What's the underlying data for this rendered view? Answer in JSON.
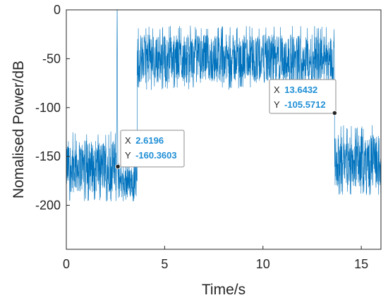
{
  "chart_data": {
    "type": "line",
    "xlabel": "Time/s",
    "ylabel": "Nomalised Power/dB",
    "xlim": [
      0,
      16
    ],
    "ylim": [
      -245,
      0
    ],
    "xticks": [
      0,
      5,
      10,
      15
    ],
    "yticks": [
      0,
      -50,
      -100,
      -150,
      -200
    ],
    "grid": false,
    "series_color": "#0072bd",
    "series": [
      {
        "segments": [
          {
            "x_start": 0.0,
            "x_end": 2.55,
            "level_low": -196,
            "level_high": -124,
            "mean": -160
          },
          {
            "x_start": 2.55,
            "x_end": 2.62,
            "spike_top": 0
          },
          {
            "x_start": 2.62,
            "x_end": 3.6,
            "level_low": -198,
            "level_high": -150,
            "mean": -175
          },
          {
            "x_start": 3.6,
            "x_end": 13.64,
            "level_low": -82,
            "level_high": -16,
            "mean": -50
          },
          {
            "x_start": 13.64,
            "x_end": 16.0,
            "level_low": -190,
            "level_high": -118,
            "mean": -155
          }
        ]
      }
    ],
    "datatips": [
      {
        "x": 2.6196,
        "y": -160.3603,
        "x_text": "2.6196",
        "y_text": "-160.3603"
      },
      {
        "x": 13.6432,
        "y": -105.5712,
        "x_text": "13.6432",
        "y_text": "-105.5712"
      }
    ]
  },
  "datatip_labels": {
    "x_prefix": "X",
    "y_prefix": "Y"
  }
}
